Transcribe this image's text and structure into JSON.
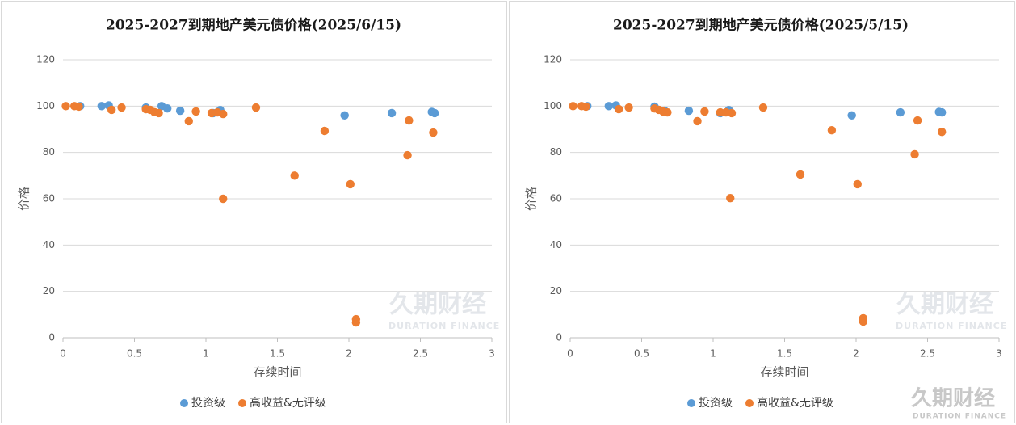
{
  "chart_data": [
    {
      "type": "scatter",
      "title": "2025-2027到期地产美元债价格(2025/6/15)",
      "x_label": "存续时间",
      "y_label": "价格",
      "xlim": [
        0,
        3
      ],
      "xticks": [
        0,
        0.5,
        1,
        1.5,
        2,
        2.5,
        3
      ],
      "ylim": [
        0,
        120
      ],
      "yticks": [
        0,
        20,
        40,
        60,
        80,
        100,
        120
      ],
      "grid": true,
      "legend": "bottom",
      "watermark": {
        "cn": "久期财经",
        "en": "DURATION FINANCE"
      },
      "series": [
        {
          "name": "投资级",
          "color": "#5b9bd5",
          "x": [
            0.12,
            0.27,
            0.32,
            0.58,
            0.69,
            0.73,
            0.82,
            1.05,
            1.1,
            1.97,
            2.3,
            2.58,
            2.6
          ],
          "values": [
            100,
            100,
            100.3,
            99.4,
            100,
            99,
            98,
            97,
            98.3,
            96,
            97,
            97.5,
            97
          ]
        },
        {
          "name": "高收益&无评级",
          "color": "#ed7d31",
          "x": [
            0.02,
            0.08,
            0.11,
            0.34,
            0.41,
            0.58,
            0.61,
            0.64,
            0.67,
            0.88,
            0.93,
            1.04,
            1.08,
            1.12,
            1.12,
            1.35,
            1.62,
            1.83,
            2.01,
            2.05,
            2.05,
            2.41,
            2.42,
            2.59
          ],
          "values": [
            100,
            100,
            99.8,
            98.4,
            99.4,
            98.7,
            98.4,
            97.4,
            97,
            93.5,
            97.7,
            97,
            97.3,
            96.6,
            60,
            99.4,
            70,
            89.3,
            66.3,
            8,
            6.6,
            78.8,
            93.8,
            88.6
          ]
        }
      ]
    },
    {
      "type": "scatter",
      "title": "2025-2027到期地产美元债价格(2025/5/15)",
      "x_label": "存续时间",
      "y_label": "价格",
      "xlim": [
        0,
        3
      ],
      "xticks": [
        0,
        0.5,
        1,
        1.5,
        2,
        2.5,
        3
      ],
      "ylim": [
        0,
        120
      ],
      "yticks": [
        0,
        20,
        40,
        60,
        80,
        100,
        120
      ],
      "grid": true,
      "legend": "bottom",
      "watermark": {
        "cn": "久期财经",
        "en": "DURATION FINANCE"
      },
      "series": [
        {
          "name": "投资级",
          "color": "#5b9bd5",
          "x": [
            0.12,
            0.27,
            0.32,
            0.59,
            0.66,
            0.83,
            1.05,
            1.11,
            1.97,
            2.31,
            2.58,
            2.6
          ],
          "values": [
            100,
            100,
            100.3,
            99.8,
            98,
            98,
            97,
            98.3,
            96,
            97.3,
            97.5,
            97.3
          ]
        },
        {
          "name": "高收益&无评级",
          "color": "#ed7d31",
          "x": [
            0.02,
            0.08,
            0.11,
            0.34,
            0.41,
            0.59,
            0.62,
            0.65,
            0.68,
            0.89,
            0.94,
            1.05,
            1.09,
            1.13,
            1.12,
            1.35,
            1.61,
            1.83,
            2.01,
            2.05,
            2.05,
            2.41,
            2.43,
            2.6
          ],
          "values": [
            100,
            100,
            99.8,
            98.7,
            99.4,
            99,
            98.4,
            97.7,
            97.3,
            93.5,
            97.7,
            97.3,
            97.3,
            97,
            60.3,
            99.4,
            70.5,
            89.6,
            66.3,
            8.4,
            7,
            79.2,
            93.8,
            88.9
          ]
        }
      ]
    }
  ],
  "logo": {
    "cn": "久期财经",
    "en": "DURATION FINANCE"
  }
}
